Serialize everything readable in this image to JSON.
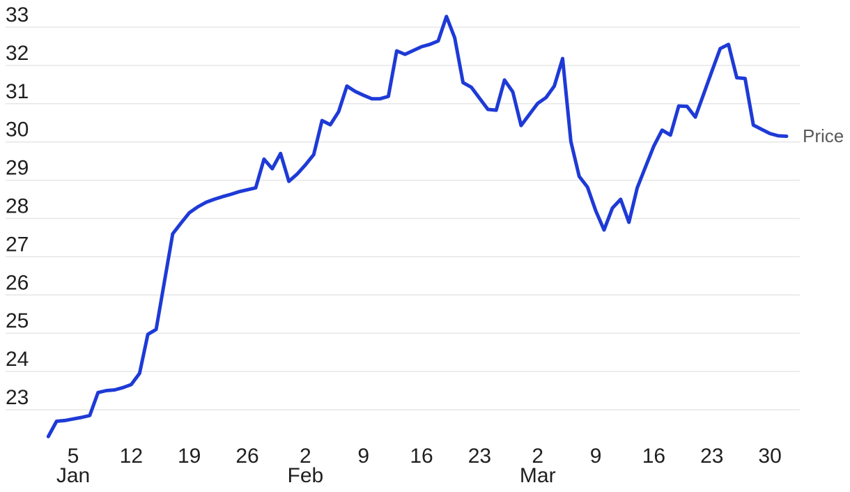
{
  "chart_data": {
    "type": "line",
    "title": "",
    "xlabel": "",
    "ylabel": "",
    "series_label": "Price",
    "grid": "horizontal-only",
    "legend_position": "right-of-line-end",
    "y_ticks": [
      23,
      24,
      25,
      26,
      27,
      28,
      29,
      30,
      31,
      32,
      33
    ],
    "ylim": [
      21.8,
      33.7
    ],
    "x_ticks": [
      {
        "date": "Jan 5",
        "label": "5"
      },
      {
        "date": "Jan 12",
        "label": "12"
      },
      {
        "date": "Jan 19",
        "label": "19"
      },
      {
        "date": "Jan 26",
        "label": "26"
      },
      {
        "date": "Feb 2",
        "label": "2"
      },
      {
        "date": "Feb 9",
        "label": "9"
      },
      {
        "date": "Feb 16",
        "label": "16"
      },
      {
        "date": "Feb 23",
        "label": "23"
      },
      {
        "date": "Mar 2",
        "label": "2"
      },
      {
        "date": "Mar 9",
        "label": "9"
      },
      {
        "date": "Mar 16",
        "label": "16"
      },
      {
        "date": "Mar 23",
        "label": "23"
      },
      {
        "date": "Mar 30",
        "label": "30"
      }
    ],
    "month_labels": [
      {
        "date": "Jan 5",
        "label": "Jan"
      },
      {
        "date": "Feb 2",
        "label": "Feb"
      },
      {
        "date": "Mar 2",
        "label": "Mar"
      }
    ],
    "x": [
      "Jan 2",
      "Jan 3",
      "Jan 4",
      "Jan 5",
      "Jan 6",
      "Jan 7",
      "Jan 8",
      "Jan 9",
      "Jan 10",
      "Jan 11",
      "Jan 12",
      "Jan 13",
      "Jan 14",
      "Jan 15",
      "Jan 16",
      "Jan 17",
      "Jan 18",
      "Jan 19",
      "Jan 20",
      "Jan 21",
      "Jan 22",
      "Jan 23",
      "Jan 24",
      "Jan 25",
      "Jan 26",
      "Jan 27",
      "Jan 28",
      "Jan 29",
      "Jan 30",
      "Jan 31",
      "Feb 1",
      "Feb 2",
      "Feb 3",
      "Feb 4",
      "Feb 5",
      "Feb 6",
      "Feb 7",
      "Feb 8",
      "Feb 9",
      "Feb 10",
      "Feb 11",
      "Feb 12",
      "Feb 13",
      "Feb 14",
      "Feb 15",
      "Feb 16",
      "Feb 17",
      "Feb 18",
      "Feb 19",
      "Feb 20",
      "Feb 21",
      "Feb 22",
      "Feb 23",
      "Feb 24",
      "Feb 25",
      "Feb 26",
      "Feb 27",
      "Feb 28",
      "Mar 1",
      "Mar 2",
      "Mar 3",
      "Mar 4",
      "Mar 5",
      "Mar 6",
      "Mar 7",
      "Mar 8",
      "Mar 9",
      "Mar 10",
      "Mar 11",
      "Mar 12",
      "Mar 13",
      "Mar 14",
      "Mar 15",
      "Mar 16",
      "Mar 17",
      "Mar 18",
      "Mar 19",
      "Mar 20",
      "Mar 21",
      "Mar 22",
      "Mar 23",
      "Mar 24",
      "Mar 25",
      "Mar 26",
      "Mar 27",
      "Mar 28",
      "Mar 29",
      "Mar 30",
      "Mar 31",
      "Apr 1"
    ],
    "values": [
      22.3,
      22.7,
      22.72,
      22.76,
      22.8,
      22.85,
      23.45,
      23.5,
      23.52,
      23.58,
      23.66,
      23.95,
      24.97,
      25.1,
      26.35,
      27.6,
      27.88,
      28.15,
      28.3,
      28.42,
      28.5,
      28.57,
      28.63,
      28.7,
      28.75,
      28.8,
      29.55,
      29.3,
      29.7,
      28.97,
      29.16,
      29.4,
      29.67,
      30.56,
      30.45,
      30.79,
      31.46,
      31.32,
      31.22,
      31.13,
      31.13,
      31.19,
      32.38,
      32.29,
      32.39,
      32.49,
      32.55,
      32.64,
      33.28,
      32.72,
      31.55,
      31.43,
      31.14,
      30.85,
      30.83,
      31.62,
      31.31,
      30.43,
      30.72,
      31.01,
      31.16,
      31.46,
      32.18,
      30.01,
      29.1,
      28.82,
      28.2,
      27.7,
      28.27,
      28.5,
      27.9,
      28.8,
      29.35,
      29.89,
      30.31,
      30.18,
      30.94,
      30.93,
      30.65,
      31.25,
      31.85,
      32.44,
      32.55,
      31.68,
      31.66,
      30.44,
      30.33,
      30.22,
      30.16,
      30.15
    ],
    "colors": {
      "line": "#1e3ad6",
      "grid": "#e6e6e6",
      "axis_text": "#1f1f1f",
      "series_label_text": "#595959",
      "background": "#ffffff"
    }
  }
}
